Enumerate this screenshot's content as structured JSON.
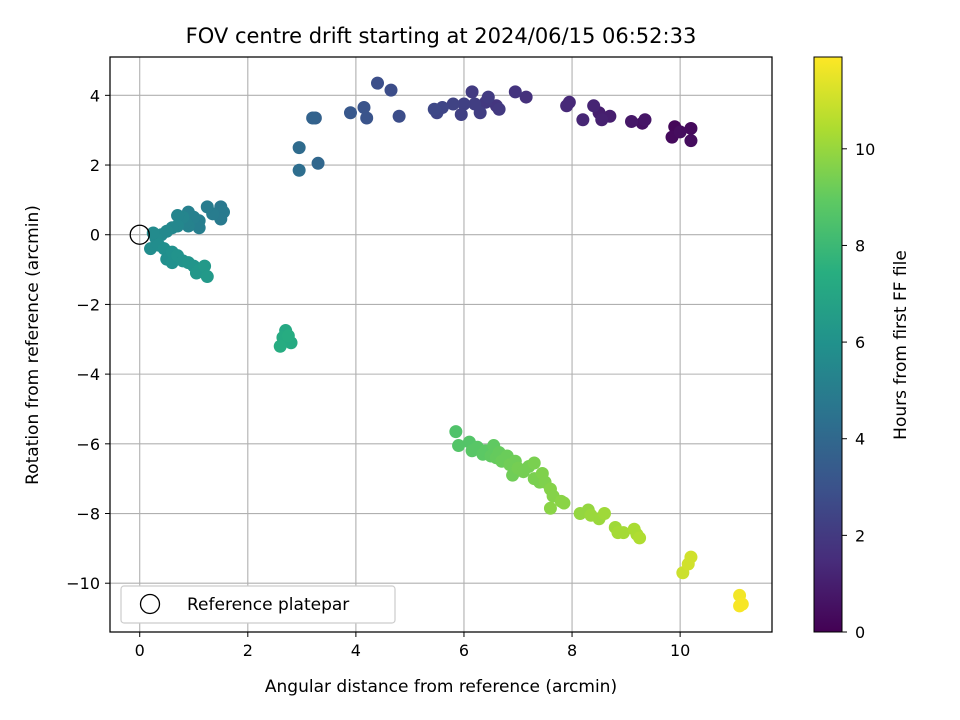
{
  "chart_data": {
    "type": "scatter",
    "title": "FOV centre drift starting at 2024/06/15 06:52:33",
    "xlabel": "Angular distance from reference (arcmin)",
    "ylabel": "Rotation from reference (arcmin)",
    "xlim": [
      -0.55,
      11.7
    ],
    "ylim": [
      -11.4,
      5.1
    ],
    "xticks": [
      0,
      2,
      4,
      6,
      8,
      10
    ],
    "yticks": [
      4,
      2,
      0,
      -2,
      -4,
      -6,
      -8,
      -10
    ],
    "xtick_labels": [
      "0",
      "2",
      "4",
      "6",
      "8",
      "10"
    ],
    "ytick_labels": [
      "4",
      "2",
      "0",
      "−2",
      "−4",
      "−6",
      "−8",
      "−10"
    ],
    "grid": true,
    "colormap": "viridis",
    "colorbar": {
      "label": "Hours from first FF file",
      "range": [
        0,
        11.9
      ],
      "ticks": [
        0,
        2,
        4,
        6,
        8,
        10
      ],
      "tick_labels": [
        "0",
        "2",
        "4",
        "6",
        "8",
        "10"
      ]
    },
    "legend": {
      "entry": "Reference platepar",
      "placement": "lower-left"
    },
    "reference_point": [
      0,
      0
    ],
    "points": [
      {
        "x": 9.9,
        "y": 3.1,
        "h": 0.2
      },
      {
        "x": 10.2,
        "y": 3.05,
        "h": 0.3
      },
      {
        "x": 9.85,
        "y": 2.8,
        "h": 0.3
      },
      {
        "x": 10.2,
        "y": 2.7,
        "h": 0.4
      },
      {
        "x": 10.0,
        "y": 2.95,
        "h": 0.4
      },
      {
        "x": 9.3,
        "y": 3.2,
        "h": 0.6
      },
      {
        "x": 9.35,
        "y": 3.3,
        "h": 0.7
      },
      {
        "x": 9.1,
        "y": 3.25,
        "h": 0.8
      },
      {
        "x": 8.7,
        "y": 3.4,
        "h": 1.0
      },
      {
        "x": 8.5,
        "y": 3.5,
        "h": 1.0
      },
      {
        "x": 8.55,
        "y": 3.3,
        "h": 1.1
      },
      {
        "x": 8.4,
        "y": 3.7,
        "h": 1.2
      },
      {
        "x": 8.2,
        "y": 3.3,
        "h": 1.3
      },
      {
        "x": 7.9,
        "y": 3.7,
        "h": 1.4
      },
      {
        "x": 7.95,
        "y": 3.8,
        "h": 1.4
      },
      {
        "x": 7.15,
        "y": 3.95,
        "h": 1.7
      },
      {
        "x": 6.95,
        "y": 4.1,
        "h": 1.8
      },
      {
        "x": 6.6,
        "y": 3.7,
        "h": 1.9
      },
      {
        "x": 6.65,
        "y": 3.6,
        "h": 2.0
      },
      {
        "x": 6.4,
        "y": 3.8,
        "h": 2.0
      },
      {
        "x": 6.45,
        "y": 3.95,
        "h": 2.1
      },
      {
        "x": 6.15,
        "y": 4.1,
        "h": 2.1
      },
      {
        "x": 6.3,
        "y": 3.5,
        "h": 2.2
      },
      {
        "x": 6.2,
        "y": 3.75,
        "h": 2.2
      },
      {
        "x": 6.0,
        "y": 3.75,
        "h": 2.3
      },
      {
        "x": 5.95,
        "y": 3.45,
        "h": 2.3
      },
      {
        "x": 5.8,
        "y": 3.75,
        "h": 2.4
      },
      {
        "x": 5.6,
        "y": 3.65,
        "h": 2.5
      },
      {
        "x": 5.5,
        "y": 3.5,
        "h": 2.5
      },
      {
        "x": 5.45,
        "y": 3.6,
        "h": 2.6
      },
      {
        "x": 4.8,
        "y": 3.4,
        "h": 2.8
      },
      {
        "x": 4.65,
        "y": 4.15,
        "h": 2.8
      },
      {
        "x": 4.4,
        "y": 4.35,
        "h": 2.9
      },
      {
        "x": 4.2,
        "y": 3.35,
        "h": 3.1
      },
      {
        "x": 4.15,
        "y": 3.65,
        "h": 3.1
      },
      {
        "x": 3.9,
        "y": 3.5,
        "h": 3.3
      },
      {
        "x": 3.25,
        "y": 3.35,
        "h": 3.7
      },
      {
        "x": 3.2,
        "y": 3.35,
        "h": 3.8
      },
      {
        "x": 3.3,
        "y": 2.05,
        "h": 4.0
      },
      {
        "x": 2.95,
        "y": 2.5,
        "h": 4.2
      },
      {
        "x": 2.95,
        "y": 1.85,
        "h": 4.3
      },
      {
        "x": 1.5,
        "y": 0.8,
        "h": 4.8
      },
      {
        "x": 1.55,
        "y": 0.65,
        "h": 4.9
      },
      {
        "x": 1.5,
        "y": 0.45,
        "h": 4.9
      },
      {
        "x": 1.35,
        "y": 0.6,
        "h": 5.0
      },
      {
        "x": 1.25,
        "y": 0.8,
        "h": 5.0
      },
      {
        "x": 1.1,
        "y": 0.4,
        "h": 5.1
      },
      {
        "x": 1.1,
        "y": 0.2,
        "h": 5.1
      },
      {
        "x": 1.0,
        "y": 0.5,
        "h": 5.2
      },
      {
        "x": 0.9,
        "y": 0.65,
        "h": 5.2
      },
      {
        "x": 0.9,
        "y": 0.25,
        "h": 5.3
      },
      {
        "x": 0.85,
        "y": 0.35,
        "h": 5.3
      },
      {
        "x": 0.8,
        "y": 0.5,
        "h": 5.4
      },
      {
        "x": 0.7,
        "y": 0.55,
        "h": 5.4
      },
      {
        "x": 0.7,
        "y": 0.25,
        "h": 5.5
      },
      {
        "x": 0.6,
        "y": 0.2,
        "h": 5.5
      },
      {
        "x": 0.5,
        "y": 0.1,
        "h": 5.6
      },
      {
        "x": 0.4,
        "y": 0.0,
        "h": 5.6
      },
      {
        "x": 0.3,
        "y": -0.1,
        "h": 5.7
      },
      {
        "x": 0.25,
        "y": 0.05,
        "h": 5.7
      },
      {
        "x": 0.2,
        "y": -0.4,
        "h": 5.8
      },
      {
        "x": 0.35,
        "y": -0.3,
        "h": 5.8
      },
      {
        "x": 0.45,
        "y": -0.4,
        "h": 5.9
      },
      {
        "x": 0.5,
        "y": -0.7,
        "h": 5.9
      },
      {
        "x": 0.6,
        "y": -0.5,
        "h": 6.0
      },
      {
        "x": 0.6,
        "y": -0.8,
        "h": 6.0
      },
      {
        "x": 0.7,
        "y": -0.6,
        "h": 6.1
      },
      {
        "x": 0.8,
        "y": -0.75,
        "h": 6.1
      },
      {
        "x": 0.9,
        "y": -0.8,
        "h": 6.2
      },
      {
        "x": 1.0,
        "y": -0.9,
        "h": 6.2
      },
      {
        "x": 1.1,
        "y": -1.0,
        "h": 6.3
      },
      {
        "x": 1.05,
        "y": -1.1,
        "h": 6.3
      },
      {
        "x": 1.2,
        "y": -0.9,
        "h": 6.4
      },
      {
        "x": 1.25,
        "y": -1.2,
        "h": 6.4
      },
      {
        "x": 2.7,
        "y": -2.75,
        "h": 7.2
      },
      {
        "x": 2.65,
        "y": -2.95,
        "h": 7.3
      },
      {
        "x": 2.8,
        "y": -3.1,
        "h": 7.3
      },
      {
        "x": 2.6,
        "y": -3.2,
        "h": 7.4
      },
      {
        "x": 2.75,
        "y": -2.9,
        "h": 7.4
      },
      {
        "x": 5.85,
        "y": -5.65,
        "h": 8.6
      },
      {
        "x": 5.9,
        "y": -6.05,
        "h": 8.7
      },
      {
        "x": 6.1,
        "y": -5.95,
        "h": 8.7
      },
      {
        "x": 6.15,
        "y": -6.2,
        "h": 8.8
      },
      {
        "x": 6.25,
        "y": -6.1,
        "h": 8.8
      },
      {
        "x": 6.35,
        "y": -6.3,
        "h": 8.9
      },
      {
        "x": 6.4,
        "y": -6.2,
        "h": 8.9
      },
      {
        "x": 6.5,
        "y": -6.35,
        "h": 9.0
      },
      {
        "x": 6.55,
        "y": -6.05,
        "h": 9.0
      },
      {
        "x": 6.6,
        "y": -6.4,
        "h": 9.1
      },
      {
        "x": 6.65,
        "y": -6.25,
        "h": 9.1
      },
      {
        "x": 6.7,
        "y": -6.5,
        "h": 9.2
      },
      {
        "x": 6.8,
        "y": -6.35,
        "h": 9.2
      },
      {
        "x": 6.85,
        "y": -6.6,
        "h": 9.3
      },
      {
        "x": 6.9,
        "y": -6.9,
        "h": 9.3
      },
      {
        "x": 6.95,
        "y": -6.5,
        "h": 9.3
      },
      {
        "x": 7.0,
        "y": -6.7,
        "h": 9.4
      },
      {
        "x": 7.1,
        "y": -6.8,
        "h": 9.4
      },
      {
        "x": 7.2,
        "y": -6.65,
        "h": 9.4
      },
      {
        "x": 7.3,
        "y": -6.55,
        "h": 9.5
      },
      {
        "x": 7.3,
        "y": -7.0,
        "h": 9.5
      },
      {
        "x": 7.4,
        "y": -7.1,
        "h": 9.5
      },
      {
        "x": 7.45,
        "y": -6.85,
        "h": 9.6
      },
      {
        "x": 7.5,
        "y": -7.1,
        "h": 9.6
      },
      {
        "x": 7.6,
        "y": -7.3,
        "h": 9.7
      },
      {
        "x": 7.65,
        "y": -7.5,
        "h": 9.7
      },
      {
        "x": 7.6,
        "y": -7.85,
        "h": 9.8
      },
      {
        "x": 7.8,
        "y": -7.65,
        "h": 9.8
      },
      {
        "x": 7.85,
        "y": -7.7,
        "h": 9.8
      },
      {
        "x": 8.15,
        "y": -8.0,
        "h": 10.0
      },
      {
        "x": 8.3,
        "y": -7.9,
        "h": 10.0
      },
      {
        "x": 8.35,
        "y": -8.05,
        "h": 10.1
      },
      {
        "x": 8.5,
        "y": -8.15,
        "h": 10.1
      },
      {
        "x": 8.6,
        "y": -8.0,
        "h": 10.2
      },
      {
        "x": 8.8,
        "y": -8.4,
        "h": 10.2
      },
      {
        "x": 8.85,
        "y": -8.55,
        "h": 10.3
      },
      {
        "x": 8.95,
        "y": -8.55,
        "h": 10.3
      },
      {
        "x": 9.15,
        "y": -8.45,
        "h": 10.4
      },
      {
        "x": 9.2,
        "y": -8.6,
        "h": 10.4
      },
      {
        "x": 9.25,
        "y": -8.7,
        "h": 10.5
      },
      {
        "x": 10.05,
        "y": -9.7,
        "h": 11.0
      },
      {
        "x": 10.15,
        "y": -9.45,
        "h": 11.1
      },
      {
        "x": 10.2,
        "y": -9.25,
        "h": 11.1
      },
      {
        "x": 11.1,
        "y": -10.35,
        "h": 11.7
      },
      {
        "x": 11.15,
        "y": -10.6,
        "h": 11.8
      },
      {
        "x": 11.1,
        "y": -10.65,
        "h": 11.8
      }
    ]
  }
}
